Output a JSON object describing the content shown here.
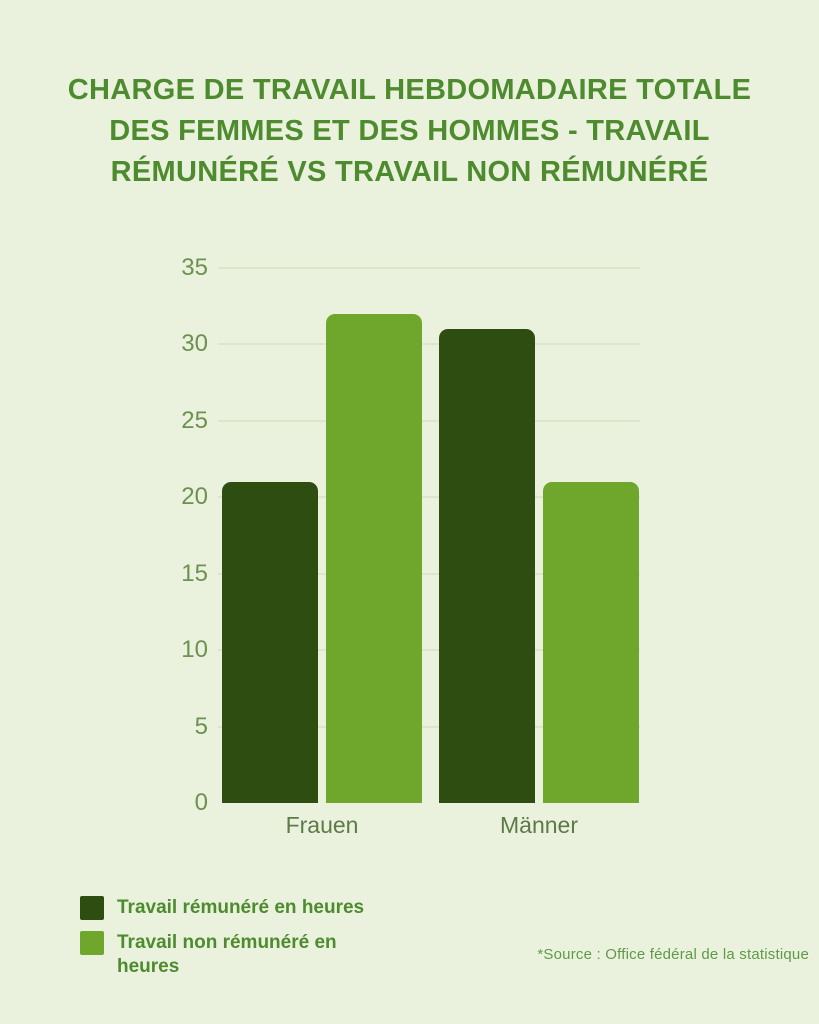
{
  "title": {
    "lines": [
      "CHARGE DE TRAVAIL HEBDOMADAIRE TOTALE",
      "DES FEMMES ET DES HOMMES - TRAVAIL",
      "RÉMUNÉRÉ VS TRAVAIL NON RÉMUNÉRÉ"
    ],
    "full": "CHARGE DE TRAVAIL HEBDOMADAIRE TOTALE DES FEMMES ET DES HOMMES - TRAVAIL RÉMUNÉRÉ VS TRAVAIL NON RÉMUNÉRÉ"
  },
  "source": {
    "text": "*Source : Office fédéral de la statistique"
  },
  "colors": {
    "background": "#eaf2de",
    "title_text": "#4d8b2e",
    "paid_bar": "#2e4e11",
    "unpaid_bar": "#6fa62c",
    "tick_label": "#6d9150",
    "x_label": "#5d7a47",
    "gridline": "#dce7ca",
    "legend_text": "#4d8b2e",
    "source_text": "#5f9a47"
  },
  "chart_data": {
    "type": "bar",
    "categories": [
      "Frauen",
      "Männer"
    ],
    "series": [
      {
        "name": "Travail rémunéré en heures",
        "color": "#2e4e11",
        "values": [
          21,
          31
        ]
      },
      {
        "name": "Travail non rémunéré en heures",
        "color": "#6fa62c",
        "values": [
          32,
          21
        ]
      }
    ],
    "title": "Charge de travail hebdomadaire totale des femmes et des hommes - travail rémunéré vs travail non rémunéré",
    "xlabel": "",
    "ylabel": "",
    "ylim": [
      0,
      35
    ],
    "yticks": [
      0,
      5,
      10,
      15,
      20,
      25,
      30,
      35
    ],
    "grid": true,
    "legend_position": "bottom-left"
  }
}
